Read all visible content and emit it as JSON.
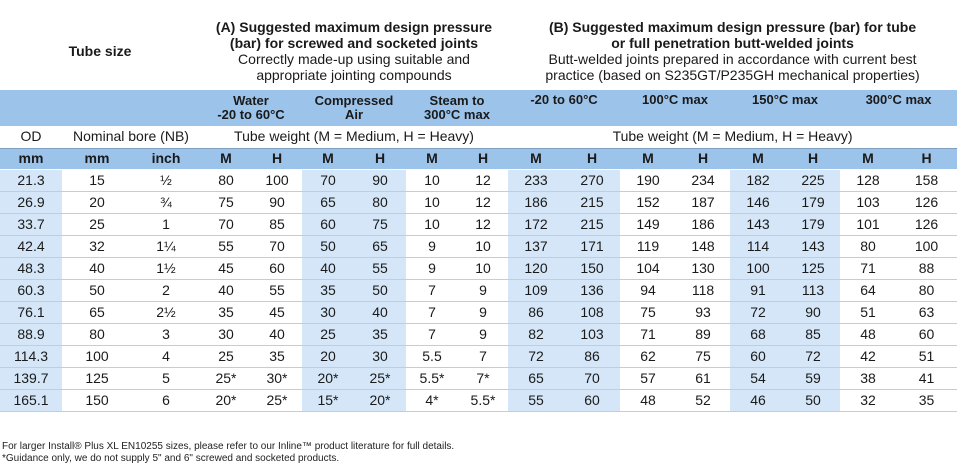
{
  "header": {
    "tube_size": "Tube size",
    "group_a_title": "(A) Suggested maximum design pressure (bar) for screwed and socketed joints",
    "group_a_line1": "(A) Suggested maximum design pressure",
    "group_a_line2": "(bar) for screwed and socketed joints",
    "group_a_line3": "Correctly made-up using suitable and",
    "group_a_line4": "appropriate jointing compounds",
    "group_b_line1": "(B) Suggested maximum design pressure (bar) for tube",
    "group_b_line2": "or full penetration butt-welded joints",
    "group_b_line3": "Butt-welded joints prepared in accordance with current best",
    "group_b_line4": "practice (based on S235GT/P235GH mechanical properties)"
  },
  "bands": {
    "water_line1": "Water",
    "water_line2": "-20 to 60°C",
    "air_line1": "Compressed",
    "air_line2": "Air",
    "steam_line1": "Steam to",
    "steam_line2": "300°C max",
    "b_temp1": "-20 to 60°C",
    "b_temp2": "100°C max",
    "b_temp3": "150°C max",
    "b_temp4": "300°C max"
  },
  "subheader": {
    "od": "OD",
    "nominal_bore": "Nominal bore (NB)",
    "weight_a": "Tube weight (M = Medium, H = Heavy)",
    "weight_b": "Tube weight (M = Medium, H = Heavy)"
  },
  "units": [
    "mm",
    "mm",
    "inch",
    "M",
    "H",
    "M",
    "H",
    "M",
    "H",
    "M",
    "H",
    "M",
    "H",
    "M",
    "H",
    "M",
    "H"
  ],
  "rows": [
    [
      "21.3",
      "15",
      "½",
      "80",
      "100",
      "70",
      "90",
      "10",
      "12",
      "233",
      "270",
      "190",
      "234",
      "182",
      "225",
      "128",
      "158"
    ],
    [
      "26.9",
      "20",
      "¾",
      "75",
      "90",
      "65",
      "80",
      "10",
      "12",
      "186",
      "215",
      "152",
      "187",
      "146",
      "179",
      "103",
      "126"
    ],
    [
      "33.7",
      "25",
      "1",
      "70",
      "85",
      "60",
      "75",
      "10",
      "12",
      "172",
      "215",
      "149",
      "186",
      "143",
      "179",
      "101",
      "126"
    ],
    [
      "42.4",
      "32",
      "1¼",
      "55",
      "70",
      "50",
      "65",
      "9",
      "10",
      "137",
      "171",
      "119",
      "148",
      "114",
      "143",
      "80",
      "100"
    ],
    [
      "48.3",
      "40",
      "1½",
      "45",
      "60",
      "40",
      "55",
      "9",
      "10",
      "120",
      "150",
      "104",
      "130",
      "100",
      "125",
      "71",
      "88"
    ],
    [
      "60.3",
      "50",
      "2",
      "40",
      "55",
      "35",
      "50",
      "7",
      "9",
      "109",
      "136",
      "94",
      "118",
      "91",
      "113",
      "64",
      "80"
    ],
    [
      "76.1",
      "65",
      "2½",
      "35",
      "45",
      "30",
      "40",
      "7",
      "9",
      "86",
      "108",
      "75",
      "93",
      "72",
      "90",
      "51",
      "63"
    ],
    [
      "88.9",
      "80",
      "3",
      "30",
      "40",
      "25",
      "35",
      "7",
      "9",
      "82",
      "103",
      "71",
      "89",
      "68",
      "85",
      "48",
      "60"
    ],
    [
      "114.3",
      "100",
      "4",
      "25",
      "35",
      "20",
      "30",
      "5.5",
      "7",
      "72",
      "86",
      "62",
      "75",
      "60",
      "72",
      "42",
      "51"
    ],
    [
      "139.7",
      "125",
      "5",
      "25*",
      "30*",
      "20*",
      "25*",
      "5.5*",
      "7*",
      "65",
      "70",
      "57",
      "61",
      "54",
      "59",
      "38",
      "41"
    ],
    [
      "165.1",
      "150",
      "6",
      "20*",
      "25*",
      "15*",
      "20*",
      "4*",
      "5.5*",
      "55",
      "60",
      "48",
      "52",
      "46",
      "50",
      "32",
      "35"
    ]
  ],
  "notes": {
    "line1": "For larger Install® Plus XL EN10255 sizes, please refer to our Inline™ product literature for full details.",
    "line2": "*Guidance only, we do not supply 5\" and 6\" screwed and socketed products."
  }
}
